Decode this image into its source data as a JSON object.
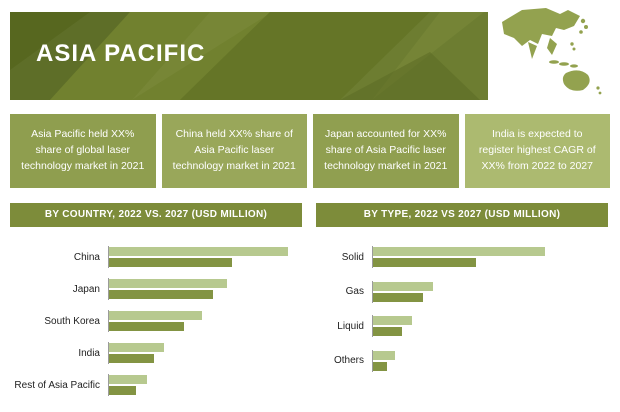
{
  "header": {
    "title": "ASIA PACIFIC"
  },
  "map": {
    "label": "asia-pacific-region-map"
  },
  "colors": {
    "banner_base": "#6a7a2e",
    "info_box_1": "#8f9e4f",
    "info_box_2": "#99a75a",
    "info_box_3": "#909f50",
    "info_box_4": "#acba70",
    "section_header": "#7d8c3a",
    "bar_2027": "#b7c98f",
    "bar_2022": "#839443"
  },
  "info_boxes": [
    {
      "text": "Asia Pacific held XX% share of global laser technology market in 2021"
    },
    {
      "text": "China held XX% share of Asia Pacific laser technology market in 2021"
    },
    {
      "text": "Japan accounted for XX% share of Asia Pacific laser technology market in 2021"
    },
    {
      "text": "India is expected to register highest CAGR of XX% from 2022 to 2027"
    }
  ],
  "chart_data": [
    {
      "type": "bar",
      "orientation": "horizontal",
      "title": "BY COUNTRY, 2022 VS. 2027 (USD MILLION)",
      "categories": [
        "China",
        "Japan",
        "South Korea",
        "India",
        "Rest of Asia Pacific"
      ],
      "series": [
        {
          "name": "2027",
          "color": "#b7c98f",
          "values": [
            100,
            66,
            52,
            31,
            21
          ]
        },
        {
          "name": "2022",
          "color": "#839443",
          "values": [
            69,
            58,
            42,
            25,
            15
          ]
        }
      ],
      "xlabel": "",
      "ylabel": "",
      "xmax": 108,
      "grid": false,
      "legend": "none",
      "note": "values are visual estimates; actual figures masked as XX in source (2027-max indexed to 100)"
    },
    {
      "type": "bar",
      "orientation": "horizontal",
      "title": "BY TYPE, 2022 VS 2027 (USD MILLION)",
      "categories": [
        "Solid",
        "Gas",
        "Liquid",
        "Others"
      ],
      "series": [
        {
          "name": "2027",
          "color": "#b7c98f",
          "values": [
            100,
            35,
            23,
            13
          ]
        },
        {
          "name": "2022",
          "color": "#839443",
          "values": [
            60,
            29,
            17,
            8
          ]
        }
      ],
      "xlabel": "",
      "ylabel": "",
      "xmax": 137,
      "grid": false,
      "legend": "none",
      "note": "values are visual estimates; actual figures masked as XX in source (2027-max indexed to 100)"
    }
  ]
}
